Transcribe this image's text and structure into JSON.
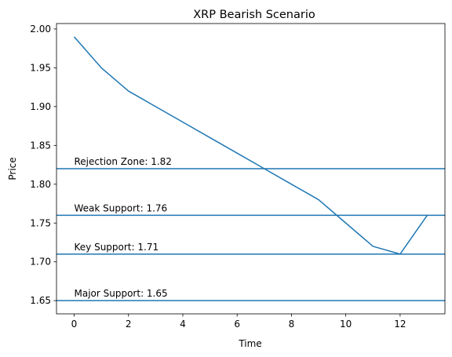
{
  "chart_data": {
    "type": "line",
    "title": "XRP Bearish Scenario",
    "xlabel": "Time",
    "ylabel": "Price",
    "xlim": [
      -0.65,
      13.65
    ],
    "ylim": [
      1.633,
      2.007
    ],
    "x_ticks": [
      0,
      2,
      4,
      6,
      8,
      10,
      12
    ],
    "y_ticks": [
      1.65,
      1.7,
      1.75,
      1.8,
      1.85,
      1.9,
      1.95,
      2.0
    ],
    "y_tick_labels": [
      "1.65",
      "1.70",
      "1.75",
      "1.80",
      "1.85",
      "1.90",
      "1.95",
      "2.00"
    ],
    "grid": false,
    "line_color": "#1f77b4",
    "series": [
      {
        "x": [
          0,
          1,
          2,
          3,
          4,
          5,
          6,
          7,
          8,
          9,
          10,
          11,
          12,
          13
        ],
        "values": [
          1.99,
          1.95,
          1.92,
          1.9,
          1.88,
          1.86,
          1.84,
          1.82,
          1.8,
          1.78,
          1.75,
          1.72,
          1.71,
          1.76
        ]
      }
    ],
    "hlines": [
      {
        "y": 1.82,
        "label": "Rejection Zone: 1.82"
      },
      {
        "y": 1.76,
        "label": "Weak Support: 1.76"
      },
      {
        "y": 1.71,
        "label": "Key Support: 1.71"
      },
      {
        "y": 1.65,
        "label": "Major Support: 1.65"
      }
    ]
  }
}
